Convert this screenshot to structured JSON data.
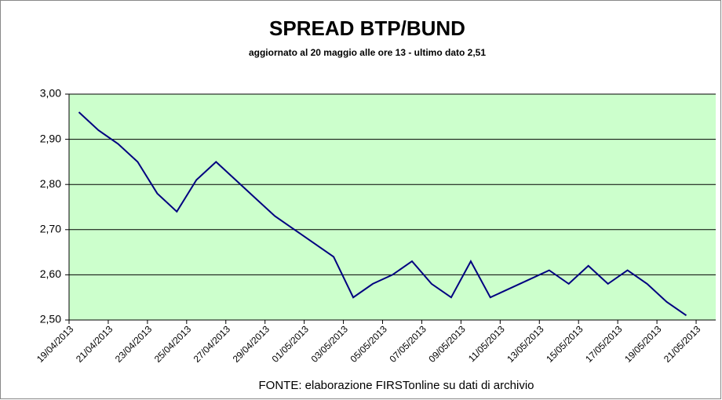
{
  "chart_data": {
    "type": "line",
    "title": "SPREAD  BTP/BUND",
    "subtitle": "aggiornato al 20 maggio alle ore 13 -  ultimo dato 2,51",
    "source": "FONTE: elaborazione FIRSTonline su dati di archivio",
    "categories": [
      "19/04/2013",
      null,
      "21/04/2013",
      null,
      "23/04/2013",
      null,
      "25/04/2013",
      null,
      "27/04/2013",
      null,
      "29/04/2013",
      null,
      "01/05/2013",
      null,
      "03/05/2013",
      null,
      "05/05/2013",
      null,
      "07/05/2013",
      null,
      "09/05/2013",
      null,
      "11/05/2013",
      null,
      "13/05/2013",
      null,
      "15/05/2013",
      null,
      "17/05/2013",
      null,
      "19/05/2013",
      null,
      "21/05/2013"
    ],
    "values": [
      2.96,
      2.92,
      2.89,
      2.85,
      2.78,
      2.74,
      2.81,
      2.85,
      2.81,
      2.77,
      2.73,
      2.7,
      2.67,
      2.64,
      2.55,
      2.58,
      2.6,
      2.63,
      2.58,
      2.55,
      2.63,
      2.55,
      2.57,
      2.59,
      2.61,
      2.58,
      2.62,
      2.58,
      2.61,
      2.58,
      2.54,
      2.51,
      null
    ],
    "color": "#000080",
    "ylim": [
      2.5,
      3.0
    ],
    "yticks": [
      {
        "value": 2.5,
        "label": "2,50"
      },
      {
        "value": 2.6,
        "label": "2,60"
      },
      {
        "value": 2.7,
        "label": "2,70"
      },
      {
        "value": 2.8,
        "label": "2,80"
      },
      {
        "value": 2.9,
        "label": "2,90"
      },
      {
        "value": 3.0,
        "label": "3,00"
      }
    ],
    "grid": true
  }
}
